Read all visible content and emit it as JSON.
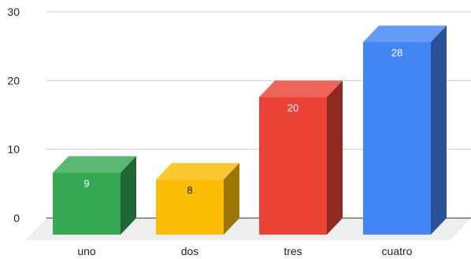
{
  "chart_data": {
    "type": "bar",
    "style": "3d",
    "categories": [
      "uno",
      "dos",
      "tres",
      "cuatro"
    ],
    "values": [
      9,
      8,
      20,
      28
    ],
    "data_labels": [
      "9",
      "8",
      "20",
      "28"
    ],
    "colors": [
      "#34a853",
      "#fbbc04",
      "#ea4335",
      "#4285f4"
    ],
    "title": "",
    "xlabel": "",
    "ylabel": "",
    "ylim": [
      0,
      30
    ],
    "yticks": [
      0,
      10,
      20,
      30
    ],
    "ytick_labels": [
      "0",
      "10",
      "20",
      "30"
    ],
    "grid": true,
    "legend": "none"
  }
}
